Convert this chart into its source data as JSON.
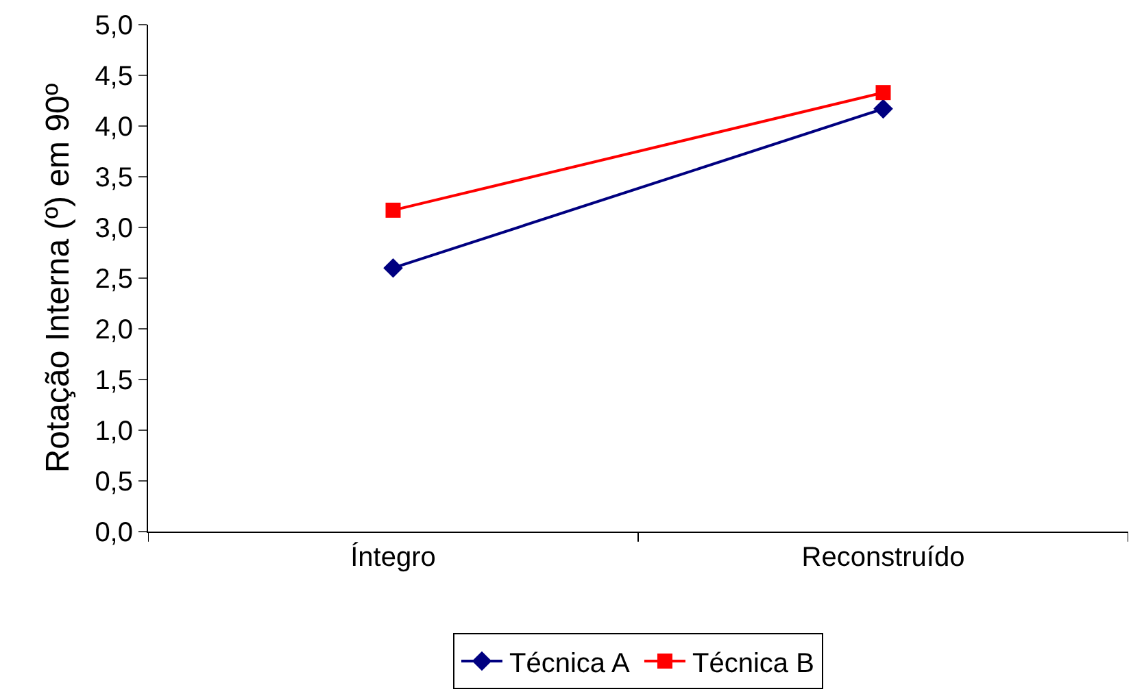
{
  "chart_data": {
    "type": "line",
    "ylabel": "Rotação Interna (º) em 90º",
    "categories": [
      "Íntegro",
      "Reconstruído"
    ],
    "series": [
      {
        "name": "Técnica A",
        "color": "#000080",
        "marker": "diamond",
        "values": [
          2.6,
          4.17
        ]
      },
      {
        "name": "Técnica B",
        "color": "#ff0000",
        "marker": "square",
        "values": [
          3.17,
          4.33
        ]
      }
    ],
    "ylim": [
      0,
      5
    ],
    "yticks": [
      {
        "value": 0,
        "label": "0,0"
      },
      {
        "value": 0.5,
        "label": "0,5"
      },
      {
        "value": 1,
        "label": "1,0"
      },
      {
        "value": 1.5,
        "label": "1,5"
      },
      {
        "value": 2,
        "label": "2,0"
      },
      {
        "value": 2.5,
        "label": "2,5"
      },
      {
        "value": 3,
        "label": "3,0"
      },
      {
        "value": 3.5,
        "label": "3,5"
      },
      {
        "value": 4,
        "label": "4,0"
      },
      {
        "value": 4.5,
        "label": "4,5"
      },
      {
        "value": 5,
        "label": "5,0"
      }
    ],
    "grid": false,
    "legend": "bottom",
    "line_style": "solid"
  }
}
